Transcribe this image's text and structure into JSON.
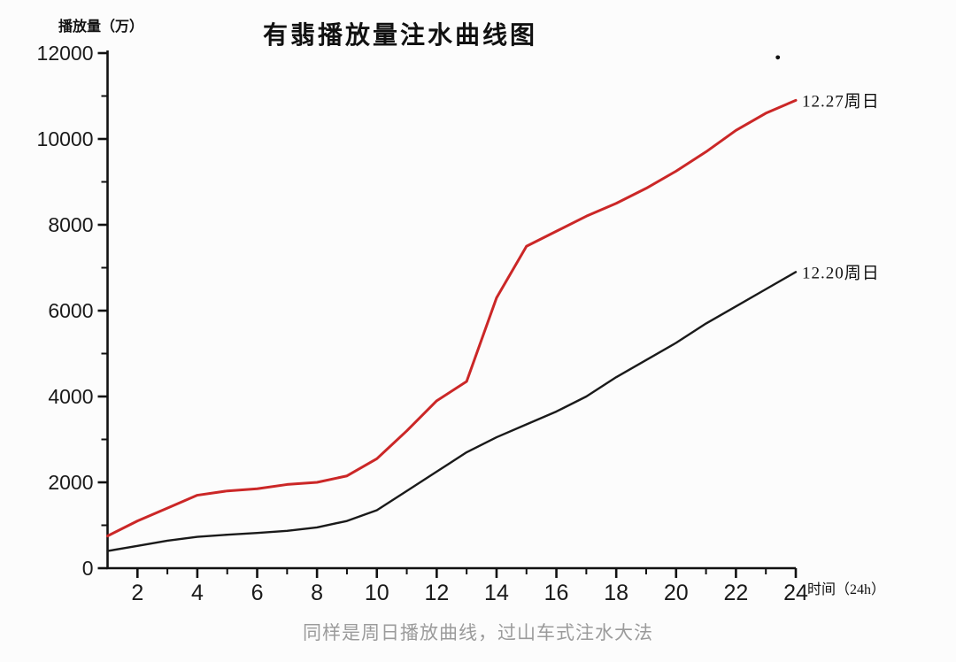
{
  "page": {
    "background": "#fcfcfc",
    "caption": "同样是周日播放曲线，过山车式注水大法"
  },
  "colors": {
    "axis": "#111111",
    "tick_label": "#1a1a1a",
    "caption": "#9b9b9b",
    "red_series": "#cb2727",
    "black_series": "#1a1a1a"
  },
  "chart_data": {
    "type": "line",
    "title": "有翡播放量注水曲线图",
    "ylabel": "播放量（万）",
    "xlabel": "时间（24h）",
    "xlim": [
      1,
      24
    ],
    "ylim": [
      0,
      12000
    ],
    "grid": false,
    "legend_position": "end-of-line-labels",
    "x": [
      1,
      2,
      3,
      4,
      5,
      6,
      7,
      8,
      9,
      10,
      11,
      12,
      13,
      14,
      15,
      16,
      17,
      18,
      19,
      20,
      21,
      22,
      23,
      24
    ],
    "x_major_ticks": [
      2,
      4,
      6,
      8,
      10,
      12,
      14,
      16,
      18,
      20,
      22,
      24
    ],
    "x_minor_ticks": [
      3,
      5,
      7,
      9,
      11,
      13,
      15,
      17,
      19,
      21,
      23
    ],
    "y_major_ticks": [
      0,
      2000,
      4000,
      6000,
      8000,
      10000,
      12000
    ],
    "y_minor_ticks": [
      1000,
      3000,
      5000,
      7000,
      9000,
      11000
    ],
    "series": [
      {
        "name": "12.27周日",
        "color": "#cb2727",
        "line_width": 3,
        "values": [
          750,
          1100,
          1400,
          1700,
          1800,
          1850,
          1950,
          2000,
          2150,
          2550,
          3200,
          3900,
          4350,
          6300,
          7500,
          7850,
          8200,
          8500,
          8850,
          9250,
          9700,
          10200,
          10600,
          10900
        ]
      },
      {
        "name": "12.20周日",
        "color": "#1a1a1a",
        "line_width": 2.4,
        "values": [
          400,
          520,
          640,
          730,
          780,
          820,
          870,
          950,
          1100,
          1350,
          1800,
          2250,
          2700,
          3050,
          3350,
          3650,
          4000,
          4450,
          4850,
          5250,
          5700,
          6100,
          6500,
          6900
        ]
      }
    ],
    "annotations": [
      {
        "type": "dot",
        "x": 23.4,
        "y": 11900
      }
    ]
  }
}
